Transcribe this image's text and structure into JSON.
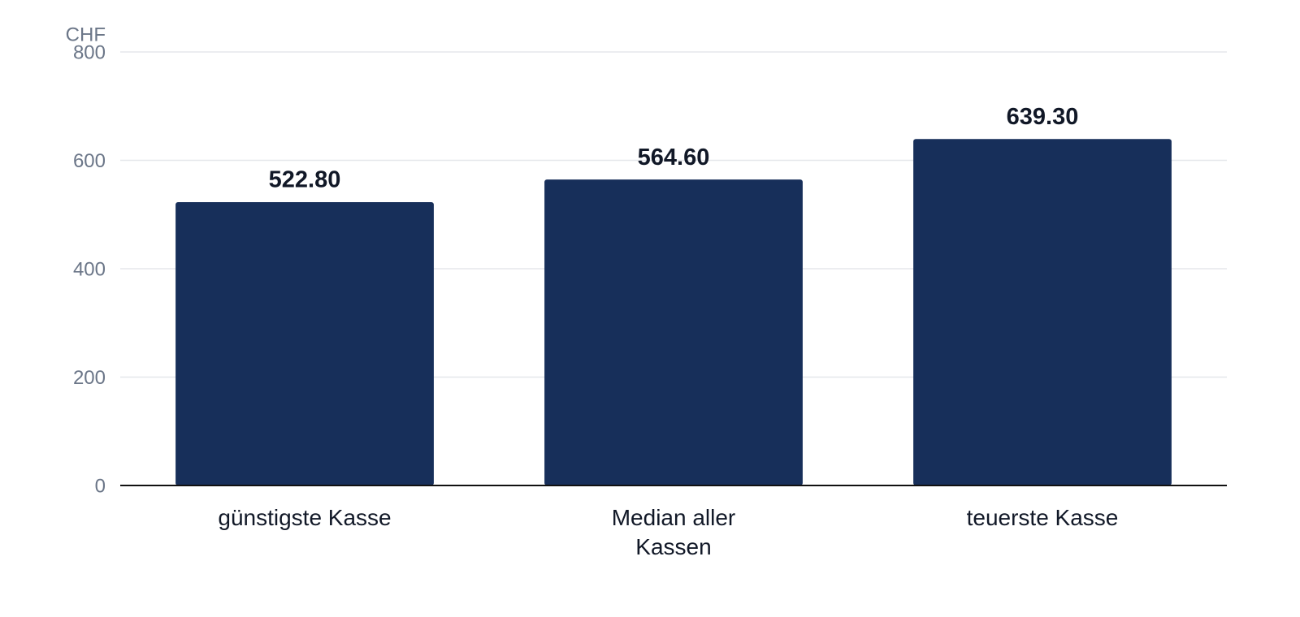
{
  "chart_data": {
    "type": "bar",
    "ylabel": "CHF",
    "categories": [
      "günstigste Kasse",
      "Median aller Kassen",
      "teuerste Kasse"
    ],
    "values": [
      522.8,
      564.6,
      639.3
    ],
    "value_labels": [
      "522.80",
      "564.60",
      "639.30"
    ],
    "color": "#172f5a",
    "ylim": [
      0,
      800
    ],
    "yticks": [
      0,
      200,
      400,
      600,
      800
    ],
    "grid": true
  }
}
